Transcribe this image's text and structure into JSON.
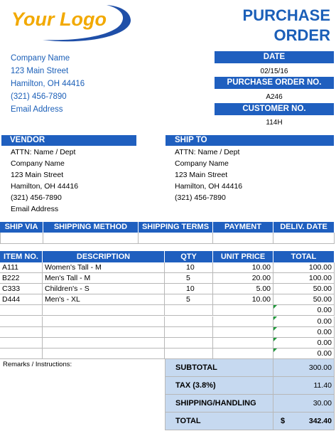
{
  "logo": "Your Logo",
  "title": "PURCHASE ORDER",
  "company": {
    "name": "Company Name",
    "street": "123 Main Street",
    "city": "Hamilton, OH  44416",
    "phone": "(321) 456-7890",
    "email": "Email Address"
  },
  "date": {
    "label": "DATE",
    "value": "02/15/16"
  },
  "po_number": {
    "label": "PURCHASE ORDER NO.",
    "value": "A246"
  },
  "customer_number": {
    "label": "CUSTOMER NO.",
    "value": "114H"
  },
  "vendor": {
    "label": "VENDOR",
    "lines": [
      "ATTN: Name / Dept",
      "Company Name",
      "123 Main Street",
      "Hamilton, OH  44416",
      "(321) 456-7890",
      "Email Address"
    ]
  },
  "ship_to": {
    "label": "SHIP TO",
    "lines": [
      "ATTN: Name / Dept",
      "Company Name",
      "123 Main Street",
      "Hamilton, OH  44416",
      "(321) 456-7890"
    ]
  },
  "shipping_table": {
    "headers": [
      "SHIP VIA",
      "SHIPPING METHOD",
      "SHIPPING TERMS",
      "PAYMENT",
      "DELIV. DATE"
    ]
  },
  "items_table": {
    "headers": [
      "ITEM NO.",
      "DESCRIPTION",
      "QTY",
      "UNIT PRICE",
      "TOTAL"
    ],
    "rows": [
      [
        "A111",
        "Women's Tall - M",
        "10",
        "10.00",
        "100.00"
      ],
      [
        "B222",
        "Men's Tall - M",
        "5",
        "20.00",
        "100.00"
      ],
      [
        "C333",
        "Children's - S",
        "10",
        "5.00",
        "50.00"
      ],
      [
        "D444",
        "Men's - XL",
        "5",
        "10.00",
        "50.00"
      ]
    ],
    "blank_row_totals": [
      "0.00",
      "0.00",
      "0.00",
      "0.00",
      "0.00"
    ]
  },
  "remarks_label": "Remarks / Instructions:",
  "totals": [
    {
      "label": "SUBTOTAL",
      "value": "300.00"
    },
    {
      "label": "TAX (3.8%)",
      "value": "11.40"
    },
    {
      "label": "SHIPPING/HANDLING",
      "value": "30.00"
    },
    {
      "label": "TOTAL",
      "currency": "$",
      "value": "342.40"
    }
  ]
}
